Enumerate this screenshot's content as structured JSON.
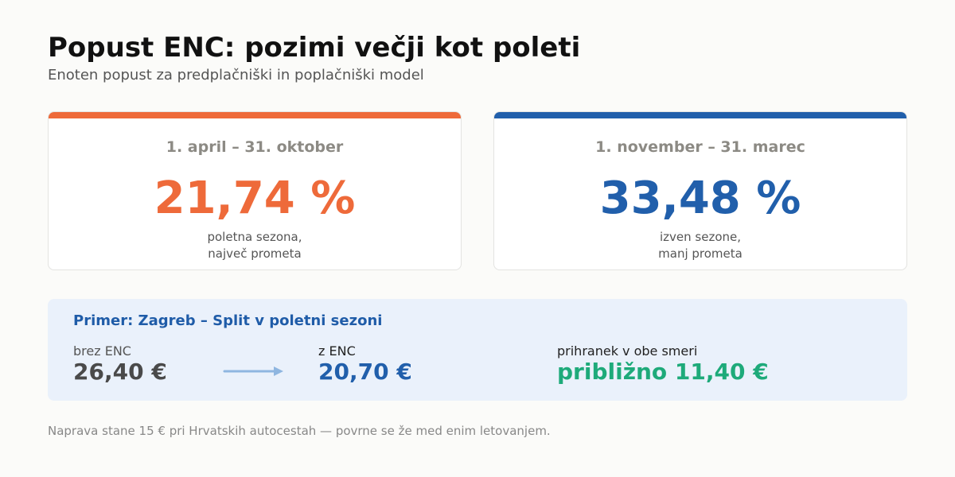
{
  "header": {
    "title": "Popust ENC: pozimi večji kot poleti",
    "subtitle": "Enoten popust za predplačniški in poplačniški model"
  },
  "cards": [
    {
      "period": "1. april – 31. oktober",
      "value": "21,74 %",
      "desc_line1": "poletna sezona,",
      "desc_line2": "največ prometa",
      "accent_color": "#ee6a3a"
    },
    {
      "period": "1. november – 31. marec",
      "value": "33,48 %",
      "desc_line1": "izven sezone,",
      "desc_line2": "manj prometa",
      "accent_color": "#215fab"
    }
  ],
  "example": {
    "title": "Primer: Zagreb – Split v poletni sezoni",
    "without_label": "brez ENC",
    "without_value": "26,40 €",
    "with_label": "z ENC",
    "with_value": "20,70 €",
    "savings_label": "prihranek v obe smeri",
    "savings_value": "približno 11,40 €",
    "arrow_icon": "arrow-right-icon"
  },
  "footer": {
    "note": "Naprava stane 15 € pri Hrvatskih autocestah — povrne se že med enim letovanjem."
  },
  "colors": {
    "background": "#fbfbf9",
    "summer": "#ee6a3a",
    "winter": "#215fab",
    "savings": "#1eaa7a",
    "panel": "#eaf1fb",
    "arrow": "#8fb6e0"
  }
}
